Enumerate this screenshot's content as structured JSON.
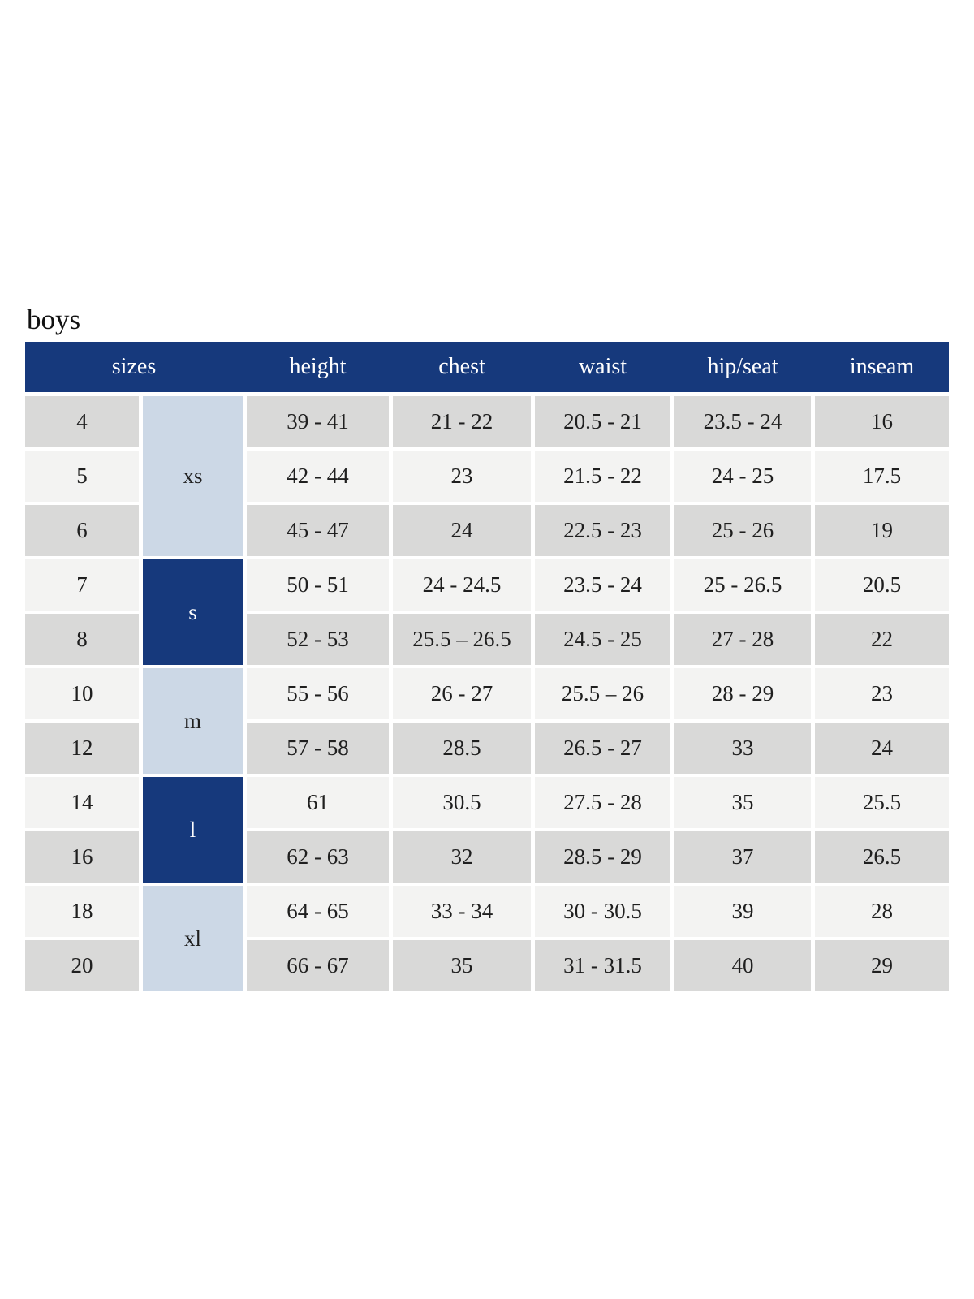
{
  "page": {
    "title": "boys"
  },
  "table": {
    "columns": [
      "sizes",
      "height",
      "chest",
      "waist",
      "hip/seat",
      "inseam"
    ],
    "groups": [
      {
        "label": "xs"
      },
      {
        "label": "s"
      },
      {
        "label": "m"
      },
      {
        "label": "l"
      },
      {
        "label": "xl"
      }
    ],
    "rows": [
      {
        "size": "4",
        "height": "39 - 41",
        "chest": "21 - 22",
        "waist": "20.5 - 21",
        "hip_seat": "23.5 - 24",
        "inseam": "16"
      },
      {
        "size": "5",
        "height": "42 - 44",
        "chest": "23",
        "waist": "21.5 - 22",
        "hip_seat": "24 - 25",
        "inseam": "17.5"
      },
      {
        "size": "6",
        "height": "45 - 47",
        "chest": "24",
        "waist": "22.5 - 23",
        "hip_seat": "25 - 26",
        "inseam": "19"
      },
      {
        "size": "7",
        "height": "50 - 51",
        "chest": "24 - 24.5",
        "waist": "23.5 - 24",
        "hip_seat": "25 - 26.5",
        "inseam": "20.5"
      },
      {
        "size": "8",
        "height": "52 - 53",
        "chest": "25.5 – 26.5",
        "waist": "24.5 - 25",
        "hip_seat": "27 - 28",
        "inseam": "22"
      },
      {
        "size": "10",
        "height": "55 - 56",
        "chest": "26 - 27",
        "waist": "25.5 – 26",
        "hip_seat": "28 - 29",
        "inseam": "23"
      },
      {
        "size": "12",
        "height": "57 - 58",
        "chest": "28.5",
        "waist": "26.5 - 27",
        "hip_seat": "33",
        "inseam": "24"
      },
      {
        "size": "14",
        "height": "61",
        "chest": "30.5",
        "waist": "27.5 - 28",
        "hip_seat": "35",
        "inseam": "25.5"
      },
      {
        "size": "16",
        "height": "62 - 63",
        "chest": "32",
        "waist": "28.5 - 29",
        "hip_seat": "37",
        "inseam": "26.5"
      },
      {
        "size": "18",
        "height": "64 - 65",
        "chest": "33 - 34",
        "waist": "30 - 30.5",
        "hip_seat": "39",
        "inseam": "28"
      },
      {
        "size": "20",
        "height": "66 - 67",
        "chest": "35",
        "waist": "31 - 31.5",
        "hip_seat": "40",
        "inseam": "29"
      }
    ],
    "colors": {
      "header_bg": "#16397c",
      "header_text": "#ffffff",
      "row_shade_dark": "#d9d9d8",
      "row_shade_light": "#f3f3f2",
      "group_light_bg": "#ccd8e6",
      "group_dark_bg": "#16397c",
      "group_dark_text": "#fdfdfd",
      "body_text": "#1f1f1f"
    }
  }
}
